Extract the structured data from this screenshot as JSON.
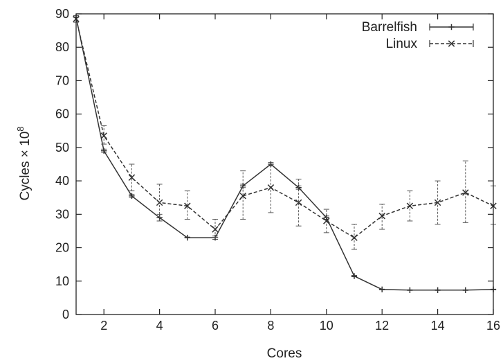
{
  "chart_data": {
    "type": "line",
    "title": "",
    "xlabel": "Cores",
    "ylabel_main": "Cycles × 10",
    "ylabel_exp": "8",
    "xlim": [
      1,
      16
    ],
    "ylim": [
      0,
      90
    ],
    "x_ticks": [
      2,
      4,
      6,
      8,
      10,
      12,
      14,
      16
    ],
    "y_ticks": [
      0,
      10,
      20,
      30,
      40,
      50,
      60,
      70,
      80,
      90
    ],
    "grid": false,
    "legend_position": "top-right",
    "series": [
      {
        "name": "Barrelfish",
        "marker": "plus",
        "line_style": "solid",
        "color": "#333333",
        "x": [
          1,
          2,
          3,
          4,
          5,
          6,
          7,
          8,
          9,
          10,
          11,
          12,
          13,
          14,
          15,
          16
        ],
        "y": [
          89,
          49,
          35.5,
          29,
          23,
          23,
          38.5,
          45,
          38,
          29,
          11.5,
          7.5,
          7.3,
          7.3,
          7.3,
          7.5
        ],
        "err_low": [
          89,
          48.5,
          35,
          28,
          23,
          22.5,
          38,
          44.5,
          37.5,
          28.5,
          11.3,
          7.4,
          7.2,
          7.2,
          7.2,
          7.4
        ],
        "err_high": [
          89,
          49.5,
          36,
          30,
          23.2,
          23.5,
          39,
          45.5,
          38.5,
          29.5,
          11.7,
          7.6,
          7.4,
          7.4,
          7.4,
          7.6
        ]
      },
      {
        "name": "Linux",
        "marker": "x",
        "line_style": "dashed",
        "color": "#333333",
        "x": [
          1,
          2,
          3,
          4,
          5,
          6,
          7,
          8,
          9,
          10,
          11,
          12,
          13,
          14,
          15,
          16
        ],
        "y": [
          88.5,
          53.5,
          41,
          33.5,
          32.5,
          25.5,
          35.5,
          38,
          33.5,
          28,
          23,
          29.5,
          32.5,
          33.5,
          36.5,
          32.5
        ],
        "err_low": [
          87.5,
          51,
          37,
          28,
          28.5,
          23,
          28.5,
          30.5,
          26.5,
          24.5,
          19.5,
          25.5,
          28,
          27,
          27.5,
          27
        ],
        "err_high": [
          89.5,
          56.5,
          45,
          39,
          37,
          28.5,
          43,
          45,
          40.5,
          31.5,
          27,
          33,
          37,
          40,
          46,
          38.5
        ]
      }
    ]
  }
}
